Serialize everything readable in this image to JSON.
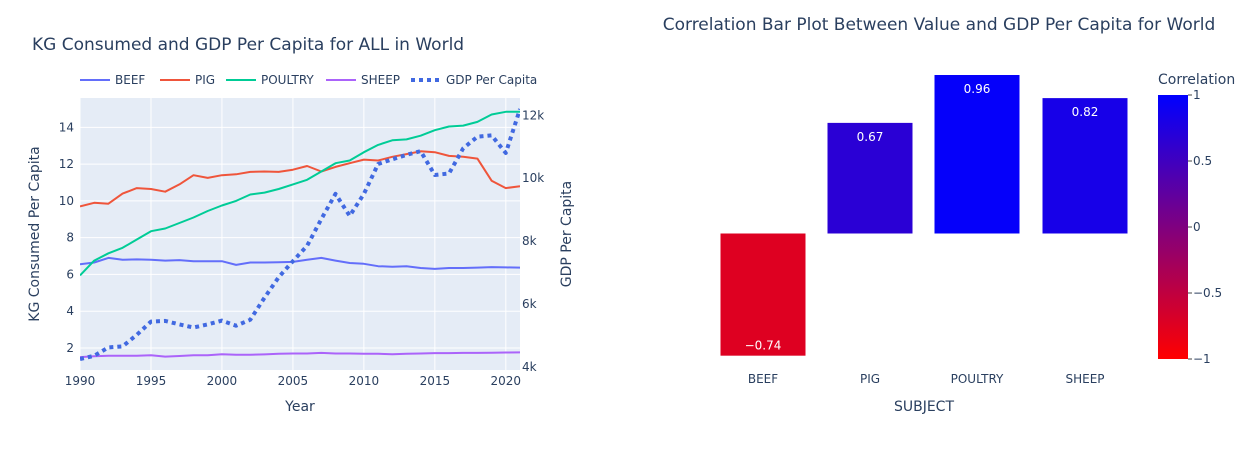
{
  "chart_data": [
    {
      "type": "line",
      "title": "KG Consumed and GDP Per Capita for ALL in World",
      "xlabel": "Year",
      "ylabel": "KG Consumed Per Capita",
      "y2label": "GDP Per Capita",
      "xlim": [
        1990,
        2021
      ],
      "ylim": [
        0.8,
        15.6
      ],
      "y2lim": [
        3900,
        12550
      ],
      "xticks": [
        "1990",
        "1995",
        "2000",
        "2005",
        "2010",
        "2015",
        "2020"
      ],
      "yticks": [
        "2",
        "4",
        "6",
        "8",
        "10",
        "12",
        "14"
      ],
      "y2ticks": [
        "4k",
        "6k",
        "8k",
        "10k",
        "12k"
      ],
      "legend_position": "top",
      "x": [
        1990,
        1991,
        1992,
        1993,
        1994,
        1995,
        1996,
        1997,
        1998,
        1999,
        2000,
        2001,
        2002,
        2003,
        2004,
        2005,
        2006,
        2007,
        2008,
        2009,
        2010,
        2011,
        2012,
        2013,
        2014,
        2015,
        2016,
        2017,
        2018,
        2019,
        2020,
        2021
      ],
      "series": [
        {
          "name": "BEEF",
          "color": "#636efa",
          "dash": "solid",
          "axis": "y",
          "values": [
            6.55,
            6.65,
            6.9,
            6.8,
            6.82,
            6.8,
            6.75,
            6.78,
            6.72,
            6.72,
            6.72,
            6.52,
            6.65,
            6.65,
            6.66,
            6.68,
            6.8,
            6.9,
            6.75,
            6.62,
            6.58,
            6.45,
            6.42,
            6.45,
            6.35,
            6.3,
            6.35,
            6.35,
            6.37,
            6.4,
            6.38,
            6.37
          ]
        },
        {
          "name": "PIG",
          "color": "#ef553b",
          "dash": "solid",
          "axis": "y",
          "values": [
            9.7,
            9.9,
            9.85,
            10.4,
            10.7,
            10.65,
            10.5,
            10.9,
            11.4,
            11.25,
            11.4,
            11.45,
            11.58,
            11.6,
            11.58,
            11.7,
            11.9,
            11.6,
            11.85,
            12.05,
            12.25,
            12.2,
            12.4,
            12.55,
            12.7,
            12.65,
            12.45,
            12.4,
            12.3,
            11.1,
            10.7,
            10.8
          ]
        },
        {
          "name": "POULTRY",
          "color": "#00cc96",
          "dash": "solid",
          "axis": "y",
          "values": [
            5.95,
            6.75,
            7.15,
            7.45,
            7.9,
            8.35,
            8.5,
            8.8,
            9.1,
            9.45,
            9.75,
            10.0,
            10.35,
            10.45,
            10.65,
            10.9,
            11.15,
            11.6,
            12.05,
            12.2,
            12.65,
            13.05,
            13.3,
            13.35,
            13.55,
            13.85,
            14.05,
            14.1,
            14.3,
            14.7,
            14.85,
            14.85
          ]
        },
        {
          "name": "SHEEP",
          "color": "#ab63fa",
          "dash": "solid",
          "axis": "y",
          "values": [
            1.5,
            1.55,
            1.57,
            1.57,
            1.58,
            1.6,
            1.53,
            1.56,
            1.6,
            1.6,
            1.66,
            1.63,
            1.63,
            1.65,
            1.68,
            1.7,
            1.7,
            1.73,
            1.7,
            1.7,
            1.68,
            1.68,
            1.66,
            1.68,
            1.7,
            1.72,
            1.72,
            1.73,
            1.73,
            1.74,
            1.75,
            1.76
          ]
        },
        {
          "name": "GDP Per Capita",
          "color": "#4169e1",
          "dash": "dot",
          "axis": "y2",
          "values": [
            4250,
            4350,
            4620,
            4650,
            5020,
            5440,
            5460,
            5350,
            5250,
            5350,
            5470,
            5310,
            5500,
            6200,
            6850,
            7360,
            7850,
            8700,
            9500,
            8800,
            9500,
            10450,
            10600,
            10740,
            10860,
            10100,
            10150,
            10950,
            11320,
            11360,
            10800,
            12200
          ]
        }
      ]
    },
    {
      "type": "bar",
      "title": "Correlation Bar Plot Between Value and GDP Per Capita for World",
      "xlabel": "SUBJECT",
      "ylabel": "",
      "categories": [
        "BEEF",
        "PIG",
        "POULTRY",
        "SHEEP"
      ],
      "values": [
        -0.74,
        0.67,
        0.96,
        0.82
      ],
      "labels": [
        "−0.74",
        "0.67",
        "0.96",
        "0.82"
      ],
      "colorbar": {
        "title": "Correlation",
        "range": [
          -1,
          1
        ],
        "ticks": [
          "1",
          "0.5",
          "0",
          "−0.5",
          "−1"
        ],
        "colorscale": [
          "#ff0000",
          "#0000ff"
        ]
      }
    }
  ]
}
